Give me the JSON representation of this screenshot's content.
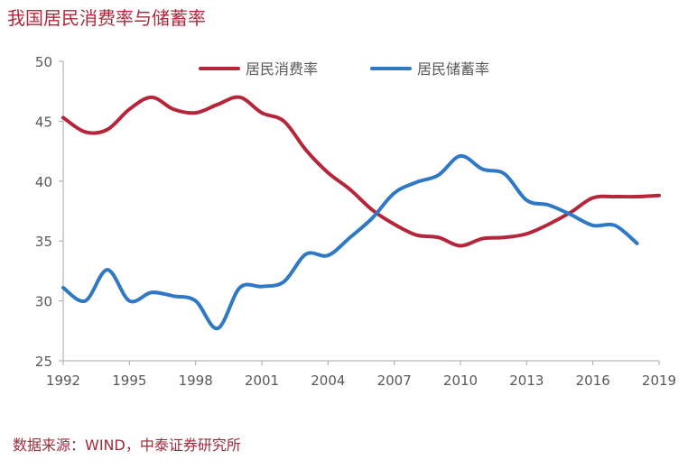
{
  "page": {
    "title": "我国居民消费率与储蓄率",
    "source": "数据来源：WIND，中泰证券研究所"
  },
  "chart_data": {
    "type": "line",
    "title": "我国居民消费率与储蓄率",
    "xlabel": "",
    "ylabel": "",
    "xlim": [
      1992,
      2019
    ],
    "ylim": [
      25,
      50
    ],
    "x_ticks": [
      1992,
      1995,
      1998,
      2001,
      2004,
      2007,
      2010,
      2013,
      2016,
      2019
    ],
    "y_ticks": [
      25,
      30,
      35,
      40,
      45,
      50
    ],
    "grid": false,
    "legend_position": "top",
    "series": [
      {
        "name": "居民消费率",
        "color": "#b5263b",
        "x": [
          1992,
          1993,
          1994,
          1995,
          1996,
          1997,
          1998,
          1999,
          2000,
          2001,
          2002,
          2003,
          2004,
          2005,
          2006,
          2007,
          2008,
          2009,
          2010,
          2011,
          2012,
          2013,
          2014,
          2015,
          2016,
          2017,
          2018,
          2019
        ],
        "values": [
          45.3,
          44.1,
          44.3,
          46.0,
          47.0,
          46.0,
          45.7,
          46.4,
          47.0,
          45.7,
          45.0,
          42.6,
          40.7,
          39.3,
          37.6,
          36.4,
          35.5,
          35.3,
          34.6,
          35.2,
          35.3,
          35.6,
          36.4,
          37.4,
          38.6,
          38.7,
          38.7,
          38.8
        ]
      },
      {
        "name": "居民储蓄率",
        "color": "#2f78c4",
        "x": [
          1992,
          1993,
          1994,
          1995,
          1996,
          1997,
          1998,
          1999,
          2000,
          2001,
          2002,
          2003,
          2004,
          2005,
          2006,
          2007,
          2008,
          2009,
          2010,
          2011,
          2012,
          2013,
          2014,
          2015,
          2016,
          2017,
          2018
        ],
        "values": [
          31.1,
          30.0,
          32.6,
          30.0,
          30.7,
          30.4,
          30.0,
          27.7,
          31.1,
          31.2,
          31.6,
          33.9,
          33.8,
          35.3,
          36.9,
          39.0,
          39.9,
          40.5,
          42.1,
          41.0,
          40.6,
          38.4,
          38.0,
          37.2,
          36.3,
          36.3,
          34.8
        ]
      }
    ]
  }
}
